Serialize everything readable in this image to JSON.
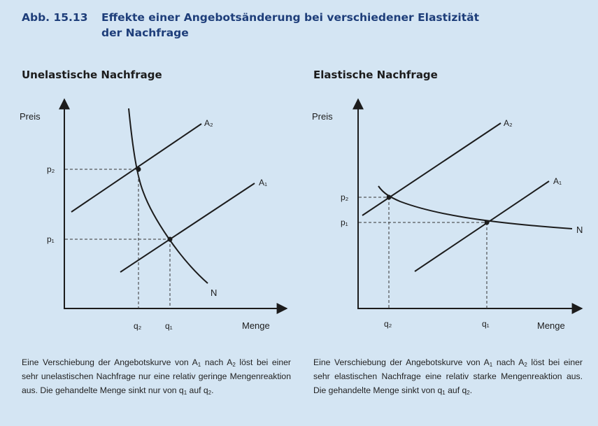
{
  "figure": {
    "number": "Abb. 15.13",
    "title_line1": "Effekte einer Angebotsänderung bei verschiedener Elastizität",
    "title_line2": "der Nachfrage"
  },
  "panels": [
    {
      "title": "Unelastische Nachfrage",
      "y_axis_label": "Preis",
      "x_axis_label": "Menge",
      "curve_labels": {
        "supply_new": "A₂",
        "supply_old": "A₁",
        "demand": "N"
      },
      "price_labels": {
        "p_high": "p₂",
        "p_low": "p₁"
      },
      "quantity_labels": {
        "q_left": "q₂",
        "q_right": "q₁"
      },
      "caption": [
        "Eine Verschiebung der Angebotskurve von A",
        "1",
        " nach A",
        "2",
        " löst bei einer sehr unelastischen Nachfrage nur eine relativ geringe Mengenreaktion aus. Die gehandelte Menge sinkt nur von q",
        "1",
        " auf q",
        "2",
        "."
      ]
    },
    {
      "title": "Elastische Nachfrage",
      "y_axis_label": "Preis",
      "x_axis_label": "Menge",
      "curve_labels": {
        "supply_new": "A₂",
        "supply_old": "A₁",
        "demand": "N"
      },
      "price_labels": {
        "p_high": "p₂",
        "p_low": "p₁"
      },
      "quantity_labels": {
        "q_left": "q₂",
        "q_right": "q₁"
      },
      "caption": [
        "Eine Verschiebung der Angebotskurve von A",
        "1",
        " nach A",
        "2",
        " löst bei einer sehr elastischen Nachfrage eine relativ starke Mengenreaktion aus. Die gehandelte Menge sinkt von q",
        "1",
        " auf q",
        "2",
        "."
      ]
    }
  ],
  "colors": {
    "background": "#d4e5f3",
    "title": "#1e3e7a",
    "ink": "#1c1c1c"
  }
}
